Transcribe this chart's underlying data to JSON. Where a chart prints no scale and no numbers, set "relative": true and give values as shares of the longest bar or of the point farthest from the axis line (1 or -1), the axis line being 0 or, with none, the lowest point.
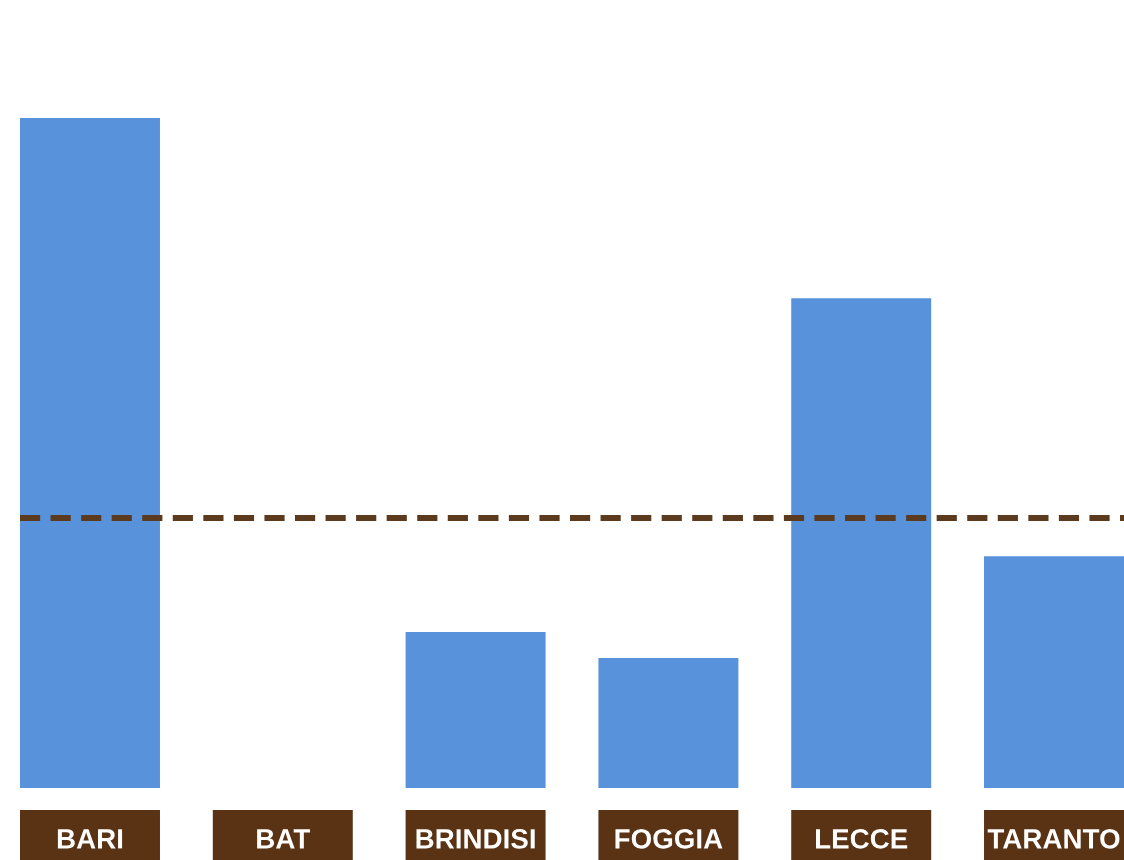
{
  "chart_data": {
    "type": "bar",
    "relative": true,
    "categories": [
      "BARI",
      "BAT",
      "BRINDISI",
      "FOGGIA",
      "LECCE",
      "TARANTO"
    ],
    "values": [
      1,
      0,
      0.233,
      0.194,
      0.731,
      0.346
    ],
    "color": "#5892db",
    "ref_lines": [
      {
        "axis": "y",
        "value": 0.403,
        "color": "#5c3a1e",
        "line_style": "dashed"
      }
    ]
  }
}
